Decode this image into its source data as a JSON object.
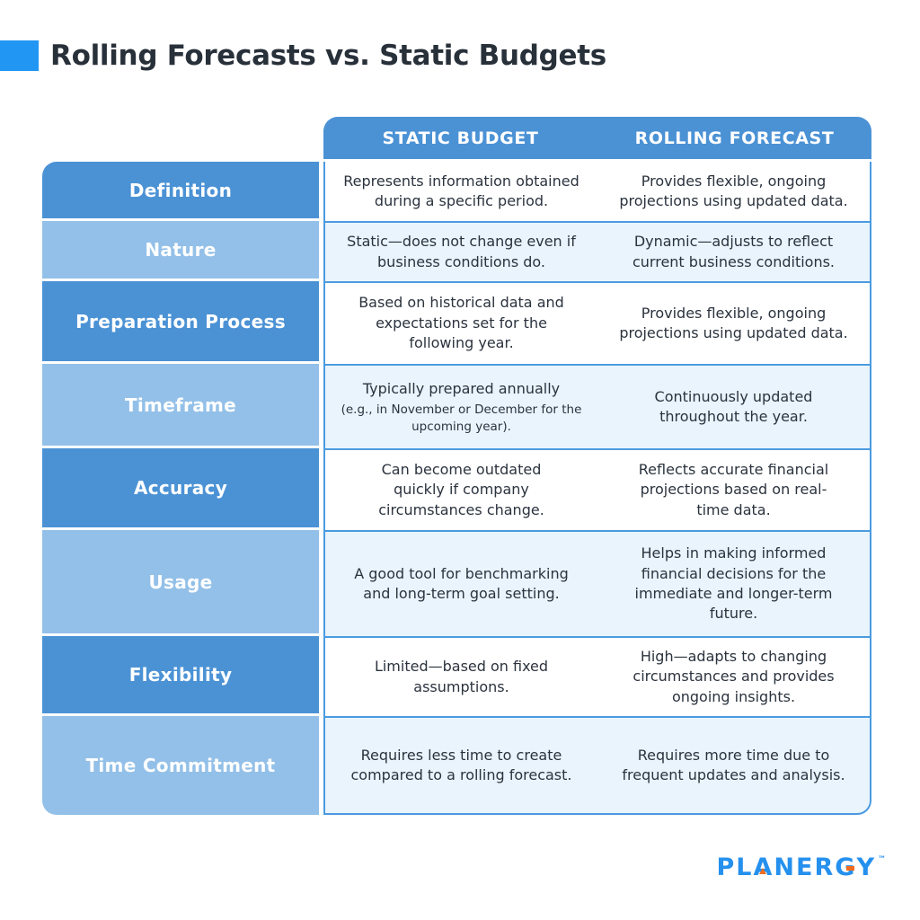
{
  "page": {
    "title": "Rolling Forecasts vs. Static Budgets"
  },
  "colors": {
    "accent": "#2196F3",
    "header_blue": "#4B92D5",
    "label_dark_blue": "#4B92D5",
    "label_light_blue": "#93C0E8",
    "cell_tint_blue": "#E9F4FD",
    "cell_border_blue": "#4B9BE0",
    "logo_blue": "#2590EE",
    "logo_orange": "#F26B1D"
  },
  "table": {
    "columns": [
      "STATIC BUDGET",
      "ROLLING FORECAST"
    ],
    "rows": [
      {
        "label": "Definition",
        "static": "Represents information obtained during a specific period.",
        "rolling": "Provides flexible, ongoing projections using updated data."
      },
      {
        "label": "Nature",
        "static": "Static—does not change even if business conditions do.",
        "rolling": "Dynamic—adjusts to reflect current business conditions."
      },
      {
        "label": "Preparation Process",
        "static": "Based on historical data and expectations set for the following year.",
        "rolling": "Provides flexible, ongoing projections using updated data."
      },
      {
        "label": "Timeframe",
        "static": "Typically prepared annually",
        "static_note": "(e.g., in November or December for the upcoming year).",
        "rolling": "Continuously updated throughout the year."
      },
      {
        "label": "Accuracy",
        "static": "Can become outdated quickly if company circumstances change.",
        "rolling": "Reflects accurate financial projections based on real-time data."
      },
      {
        "label": "Usage",
        "static": "A good tool for benchmarking and long-term goal setting.",
        "rolling": "Helps in making informed financial decisions for the immediate and longer-term future."
      },
      {
        "label": "Flexibility",
        "static": "Limited—based on fixed assumptions.",
        "rolling": "High—adapts to changing circumstances and provides ongoing insights."
      },
      {
        "label": "Time Commitment",
        "static": "Requires less time to create compared to a rolling forecast.",
        "rolling": "Requires more time due to frequent updates and analysis."
      }
    ]
  },
  "logo": {
    "p1": "PL",
    "a": "A",
    "p2": "NER",
    "g": "G",
    "p3": "Y",
    "tm": "™"
  }
}
